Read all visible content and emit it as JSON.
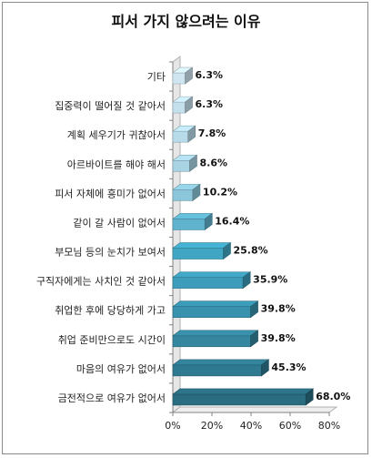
{
  "chart_data": {
    "type": "bar",
    "orientation": "horizontal",
    "title": "피서 가지 않으려는 이유",
    "categories": [
      "기타",
      "집중력이 떨어질 것 같아서",
      "계획 세우기가 귀찮아서",
      "아르바이트를 해야 해서",
      "피서 자체에 흥미가 없어서",
      "같이 갈 사람이 없어서",
      "부모님 등의 눈치가 보여서",
      "구직자에게는 사치인 것 같아서",
      "취업한 후에 당당하게 가고",
      "취업 준비만으로도 시간이",
      "마음의 여유가 없어서",
      "금전적으로 여유가 없어서"
    ],
    "values": [
      6.3,
      6.3,
      7.8,
      8.6,
      10.2,
      16.4,
      25.8,
      35.9,
      39.8,
      39.8,
      45.3,
      68.0
    ],
    "value_labels": [
      "6.3%",
      "6.3%",
      "7.8%",
      "8.6%",
      "10.2%",
      "16.4%",
      "25.8%",
      "35.9%",
      "39.8%",
      "39.8%",
      "45.3%",
      "68.0%"
    ],
    "xlim": [
      0,
      80
    ],
    "x_ticks": [
      "0%",
      "20%",
      "40%",
      "60%",
      "80%"
    ],
    "bar_colors": [
      "#cfe6f1",
      "#c4e0ed",
      "#b8dbe9",
      "#a9d3e3",
      "#8cc6da",
      "#5fb3cc",
      "#40a6c3",
      "#3c9cb9",
      "#3891ad",
      "#35879f",
      "#2f7a91",
      "#2a6c80"
    ],
    "grid": false
  }
}
